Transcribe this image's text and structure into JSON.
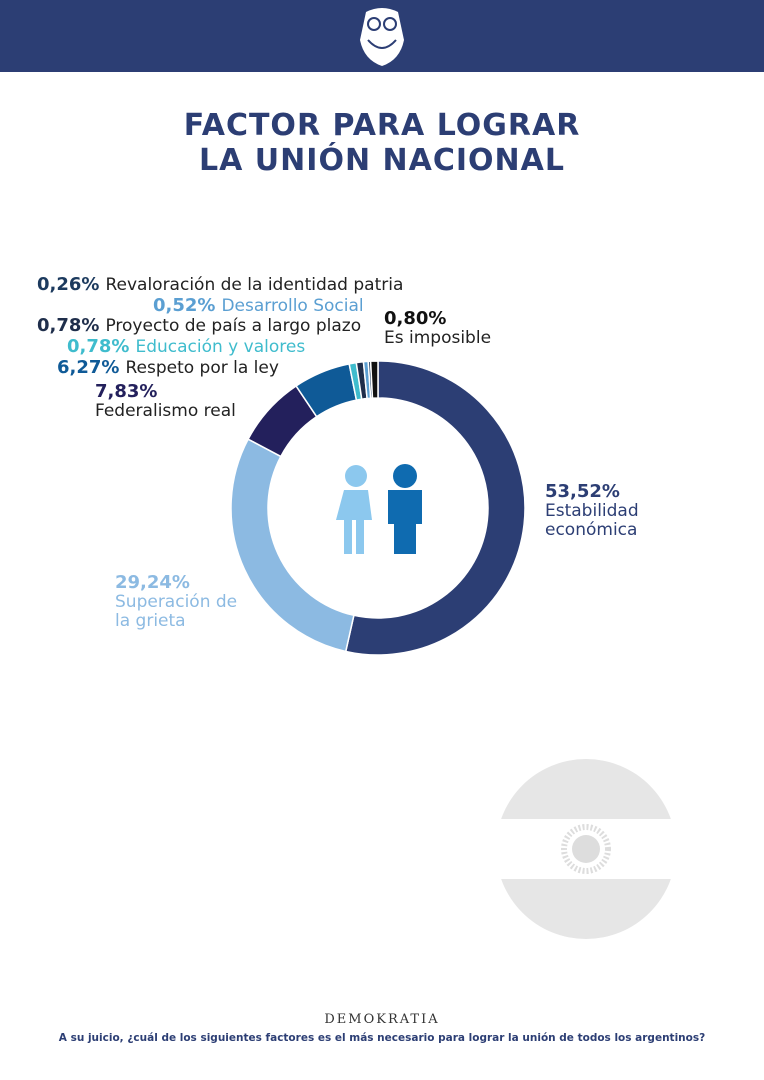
{
  "chart_data": {
    "type": "donut",
    "title": [
      "FACTOR PARA LOGRAR",
      "LA UNIÓN NACIONAL"
    ],
    "categories": [
      "Estabilidad económica",
      "Superación de la grieta",
      "Federalismo real",
      "Respeto por la ley",
      "Educación y valores",
      "Proyecto de país a largo plazo",
      "Desarrollo Social",
      "Revaloración de la identidad patria",
      "Es imposible"
    ],
    "values": [
      53.52,
      29.24,
      7.83,
      6.27,
      0.78,
      0.78,
      0.52,
      0.26,
      0.8
    ],
    "value_labels": [
      "53,52%",
      "29,24%",
      "7,83%",
      "6,27%",
      "0,78%",
      "0,78%",
      "0,52%",
      "0,26%",
      "0,80%"
    ],
    "colors": [
      "#2c3e74",
      "#8cbae2",
      "#23205c",
      "#0f5a97",
      "#3fbccd",
      "#1f2e4b",
      "#5b9fd2",
      "#1c3a5e",
      "#111111"
    ],
    "label_colors": [
      "#2c3e74",
      "#8cbae2",
      "#23205c",
      "#0f5a97",
      "#3fbccd",
      "#1f2e4b",
      "#5b9fd2",
      "#1c3a5e",
      "#111111"
    ]
  },
  "footer": {
    "brand": "DEMOKRATIA",
    "question": "A su juicio, ¿cuál de los siguientes factores es el más necesario para lograr la unión de todos los argentinos?"
  }
}
